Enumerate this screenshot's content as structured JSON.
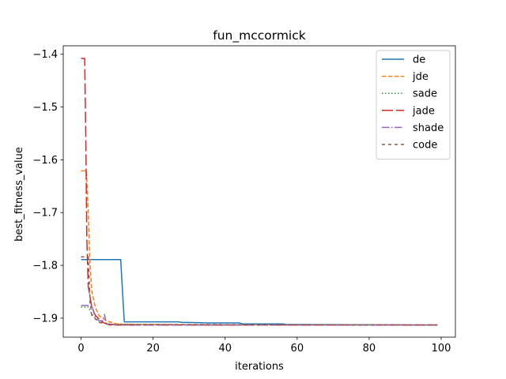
{
  "chart_data": {
    "type": "line",
    "title": "fun_mccormick",
    "xlabel": "iterations",
    "ylabel": "best_fitness_value",
    "xlim": [
      -4.95,
      103.95
    ],
    "ylim": [
      -1.936,
      -1.384
    ],
    "xticks": [
      0,
      20,
      40,
      60,
      80,
      100
    ],
    "yticks": [
      -1.9,
      -1.8,
      -1.7,
      -1.6,
      -1.5,
      -1.4
    ],
    "legend_position": "upper right",
    "grid": false,
    "series": [
      {
        "name": "de",
        "color": "#1f77b4",
        "dash": "solid",
        "points": [
          [
            0,
            -1.789
          ],
          [
            11,
            -1.789
          ],
          [
            12,
            -1.907
          ],
          [
            27,
            -1.907
          ],
          [
            28,
            -1.908
          ],
          [
            35,
            -1.909
          ],
          [
            44,
            -1.909
          ],
          [
            45,
            -1.911
          ],
          [
            56,
            -1.911
          ],
          [
            57,
            -1.912
          ],
          [
            99,
            -1.913
          ]
        ]
      },
      {
        "name": "jde",
        "color": "#ff7f0e",
        "dash": "dashed",
        "points": [
          [
            0,
            -1.621
          ],
          [
            1.5,
            -1.621
          ],
          [
            2,
            -1.7
          ],
          [
            2.5,
            -1.8
          ],
          [
            3,
            -1.85
          ],
          [
            4,
            -1.88
          ],
          [
            5,
            -1.895
          ],
          [
            7,
            -1.905
          ],
          [
            10,
            -1.911
          ],
          [
            15,
            -1.912
          ],
          [
            20,
            -1.912
          ],
          [
            40,
            -1.913
          ],
          [
            99,
            -1.913
          ]
        ]
      },
      {
        "name": "sade",
        "color": "#2ca02c",
        "dash": "dotted",
        "points": [
          [
            0,
            -1.879
          ],
          [
            2,
            -1.879
          ],
          [
            3,
            -1.893
          ],
          [
            5,
            -1.905
          ],
          [
            8,
            -1.912
          ],
          [
            99,
            -1.913
          ]
        ]
      },
      {
        "name": "jade",
        "color": "#d62728",
        "dash": "longdash",
        "points": [
          [
            0,
            -1.408
          ],
          [
            1,
            -1.408
          ],
          [
            1.3,
            -1.55
          ],
          [
            1.6,
            -1.75
          ],
          [
            2,
            -1.84
          ],
          [
            3,
            -1.88
          ],
          [
            4,
            -1.895
          ],
          [
            6,
            -1.908
          ],
          [
            8,
            -1.913
          ],
          [
            99,
            -1.913
          ]
        ]
      },
      {
        "name": "shade",
        "color": "#9467bd",
        "dash": "dashdot",
        "points": [
          [
            0,
            -1.876
          ],
          [
            3,
            -1.876
          ],
          [
            4,
            -1.9
          ],
          [
            5,
            -1.905
          ],
          [
            6,
            -1.905
          ],
          [
            6.5,
            -1.893
          ],
          [
            7,
            -1.91
          ],
          [
            10,
            -1.913
          ],
          [
            99,
            -1.913
          ]
        ]
      },
      {
        "name": "code",
        "color": "#8c564b",
        "dash": "densedash",
        "points": [
          [
            0,
            -1.784
          ],
          [
            2,
            -1.784
          ],
          [
            2.5,
            -1.87
          ],
          [
            3,
            -1.895
          ],
          [
            5,
            -1.908
          ],
          [
            8,
            -1.912
          ],
          [
            99,
            -1.913
          ]
        ]
      }
    ]
  }
}
